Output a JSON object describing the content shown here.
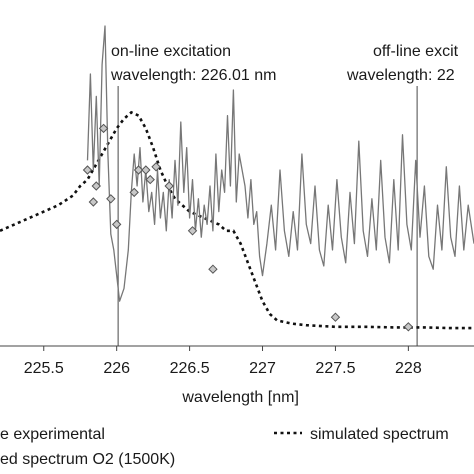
{
  "chart_data": {
    "type": "line",
    "xlabel": "wavelength [nm]",
    "ylabel": "",
    "xlim": [
      225.2,
      228.45
    ],
    "ylim": [
      0,
      1.05
    ],
    "x_ticks": [
      225.5,
      226,
      226.5,
      227,
      227.5,
      228
    ],
    "x_tick_labels": [
      "225.5",
      "226",
      "226.5",
      "227",
      "227.5",
      "228"
    ],
    "y_ticks": [],
    "grid": false,
    "legend_position": "bottom",
    "annotations": [
      {
        "lines": [
          "on-line excitation",
          "wavelength: 226.01 nm"
        ],
        "x": 226.01
      },
      {
        "lines": [
          "off-line excit",
          "wavelength: 22"
        ],
        "x": 228.06
      }
    ],
    "series": [
      {
        "name": "e experimental",
        "style": "solid-gray",
        "x": [
          225.8,
          225.82,
          225.84,
          225.86,
          225.88,
          225.9,
          225.92,
          225.94,
          225.96,
          225.98,
          226.0,
          226.02,
          226.05,
          226.08,
          226.1,
          226.12,
          226.14,
          226.16,
          226.18,
          226.2,
          226.22,
          226.24,
          226.26,
          226.28,
          226.3,
          226.32,
          226.34,
          226.36,
          226.38,
          226.4,
          226.42,
          226.44,
          226.46,
          226.48,
          226.5,
          226.52,
          226.54,
          226.56,
          226.58,
          226.6,
          226.62,
          226.64,
          226.66,
          226.68,
          226.7,
          226.72,
          226.74,
          226.76,
          226.78,
          226.8,
          226.82,
          226.84,
          226.86,
          226.88,
          226.9,
          226.92,
          226.94,
          226.96,
          226.98,
          227.0,
          227.03,
          227.06,
          227.09,
          227.12,
          227.15,
          227.18,
          227.21,
          227.24,
          227.27,
          227.3,
          227.33,
          227.36,
          227.39,
          227.42,
          227.45,
          227.48,
          227.51,
          227.54,
          227.57,
          227.6,
          227.63,
          227.66,
          227.69,
          227.72,
          227.75,
          227.78,
          227.81,
          227.84,
          227.87,
          227.9,
          227.93,
          227.96,
          227.99,
          228.02,
          228.05,
          228.08,
          228.11,
          228.14,
          228.17,
          228.2,
          228.23,
          228.26,
          228.29,
          228.32,
          228.35,
          228.38,
          228.41,
          228.45
        ],
        "values": [
          0.58,
          0.85,
          0.55,
          0.78,
          0.5,
          0.88,
          1.0,
          0.6,
          0.35,
          0.3,
          0.22,
          0.14,
          0.18,
          0.3,
          0.48,
          0.6,
          0.5,
          0.62,
          0.45,
          0.55,
          0.42,
          0.48,
          0.38,
          0.55,
          0.4,
          0.48,
          0.36,
          0.52,
          0.4,
          0.58,
          0.44,
          0.7,
          0.48,
          0.62,
          0.4,
          0.52,
          0.36,
          0.46,
          0.34,
          0.44,
          0.38,
          0.5,
          0.36,
          0.6,
          0.42,
          0.55,
          0.48,
          0.72,
          0.5,
          0.8,
          0.45,
          0.6,
          0.55,
          0.5,
          0.4,
          0.52,
          0.38,
          0.42,
          0.28,
          0.22,
          0.32,
          0.44,
          0.3,
          0.55,
          0.36,
          0.28,
          0.42,
          0.3,
          0.6,
          0.38,
          0.32,
          0.5,
          0.3,
          0.25,
          0.44,
          0.3,
          0.52,
          0.34,
          0.26,
          0.48,
          0.32,
          0.64,
          0.36,
          0.28,
          0.46,
          0.3,
          0.58,
          0.34,
          0.26,
          0.52,
          0.3,
          0.66,
          0.38,
          0.3,
          0.58,
          0.34,
          0.5,
          0.28,
          0.24,
          0.44,
          0.3,
          0.56,
          0.34,
          0.28,
          0.5,
          0.3,
          0.44,
          0.32
        ]
      },
      {
        "name": "simulated spectrum",
        "style": "dotted-black",
        "x": [
          225.2,
          225.3,
          225.4,
          225.5,
          225.6,
          225.7,
          225.75,
          225.8,
          225.85,
          225.9,
          225.95,
          226.0,
          226.05,
          226.1,
          226.15,
          226.2,
          226.25,
          226.3,
          226.35,
          226.4,
          226.5,
          226.6,
          226.7,
          226.75,
          226.8,
          226.85,
          226.9,
          226.95,
          227.0,
          227.05,
          227.1,
          227.2,
          227.3,
          227.5,
          227.7,
          227.9,
          228.1,
          228.3,
          228.45
        ],
        "values": [
          0.36,
          0.38,
          0.4,
          0.42,
          0.44,
          0.47,
          0.5,
          0.52,
          0.56,
          0.6,
          0.64,
          0.68,
          0.71,
          0.73,
          0.72,
          0.68,
          0.62,
          0.55,
          0.5,
          0.46,
          0.42,
          0.4,
          0.38,
          0.36,
          0.36,
          0.32,
          0.26,
          0.2,
          0.14,
          0.1,
          0.08,
          0.07,
          0.065,
          0.06,
          0.06,
          0.058,
          0.058,
          0.056,
          0.056
        ]
      },
      {
        "name": "ed spectrum O2 (1500K)",
        "style": "diamond-markers",
        "x": [
          225.8,
          225.84,
          225.86,
          225.91,
          225.96,
          226.0,
          226.12,
          226.15,
          226.2,
          226.23,
          226.27,
          226.36,
          226.52,
          226.66,
          227.5,
          228.0
        ],
        "values": [
          0.55,
          0.45,
          0.5,
          0.68,
          0.46,
          0.38,
          0.48,
          0.55,
          0.55,
          0.52,
          0.56,
          0.5,
          0.36,
          0.24,
          0.09,
          0.06
        ]
      }
    ]
  }
}
